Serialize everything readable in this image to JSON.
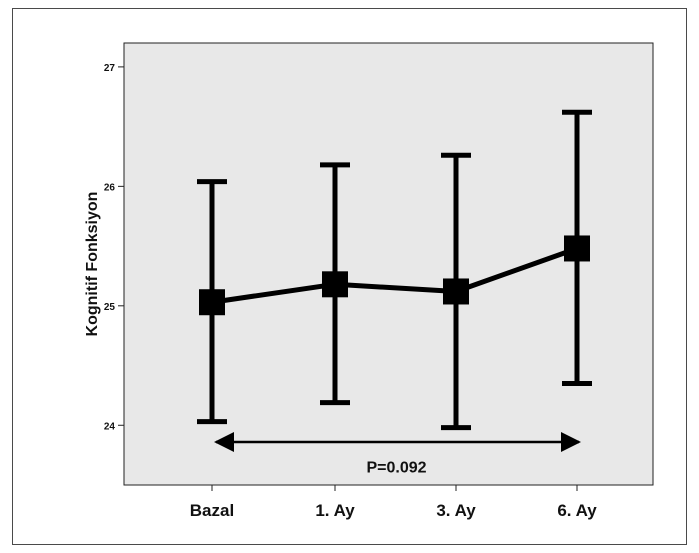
{
  "chart_data": {
    "type": "line",
    "subtype": "error-bar",
    "title": "",
    "xlabel": "",
    "ylabel": "Kognitif Fonksiyon",
    "categories": [
      "Bazal",
      "1. Ay",
      "3. Ay",
      "6. Ay"
    ],
    "series": [
      {
        "values": [
          25.03,
          25.18,
          25.12,
          25.48
        ],
        "lower": [
          24.03,
          24.19,
          23.98,
          24.35
        ],
        "upper": [
          26.04,
          26.18,
          26.26,
          26.62
        ]
      }
    ],
    "ylim": [
      23.5,
      27.2
    ],
    "yticks": [
      24,
      25,
      26,
      27
    ],
    "ytick_labels": [
      "24",
      "25",
      "26",
      "27"
    ],
    "grid": false,
    "legend": "none",
    "annotation": {
      "text": "P=0.092",
      "arrow_from": "Bazal",
      "arrow_to": "6. Ay",
      "arrow_y": 23.86,
      "text_y": 23.64
    },
    "colors": {
      "plot_background": "#e8e8e8",
      "series": "#000000"
    }
  }
}
